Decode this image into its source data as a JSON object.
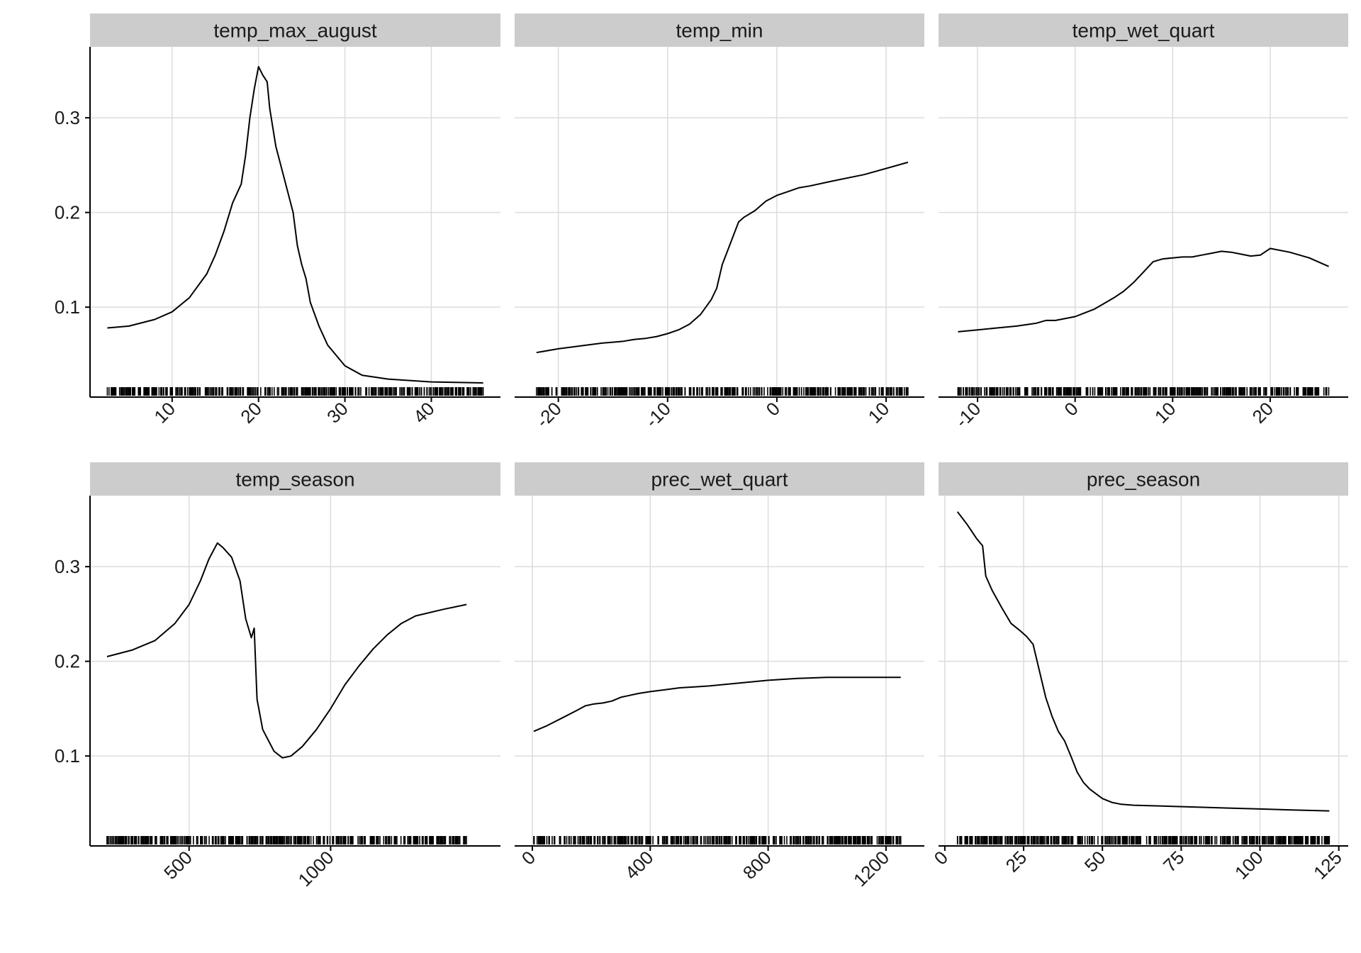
{
  "chart_data": [
    {
      "type": "line",
      "title": "temp_max_august",
      "xlim": [
        0.5,
        48
      ],
      "ylim": [
        0.005,
        0.375
      ],
      "x_ticks": [
        10,
        20,
        30,
        40
      ],
      "x_tick_labels": [
        "10",
        "20",
        "30",
        "40"
      ],
      "y_ticks": [
        0.1,
        0.2,
        0.3
      ],
      "y_tick_labels": [
        "0.1",
        "0.2",
        "0.3"
      ],
      "x": [
        2.5,
        5,
        8,
        10,
        12,
        14,
        15,
        16,
        17,
        18,
        18.5,
        19,
        19.5,
        20,
        20.5,
        21,
        21.3,
        22,
        23,
        24,
        24.5,
        25,
        25.5,
        26,
        27,
        28,
        30,
        32,
        35,
        40,
        46
      ],
      "y": [
        0.078,
        0.08,
        0.087,
        0.095,
        0.11,
        0.135,
        0.155,
        0.18,
        0.21,
        0.23,
        0.26,
        0.3,
        0.33,
        0.354,
        0.345,
        0.338,
        0.31,
        0.27,
        0.235,
        0.2,
        0.165,
        0.145,
        0.13,
        0.105,
        0.08,
        0.06,
        0.038,
        0.028,
        0.024,
        0.021,
        0.02
      ],
      "rug": {
        "min": 2.5,
        "max": 46
      }
    },
    {
      "type": "line",
      "title": "temp_min",
      "xlim": [
        -24,
        13.5
      ],
      "ylim": [
        0.005,
        0.375
      ],
      "x_ticks": [
        -20,
        -10,
        0,
        10
      ],
      "x_tick_labels": [
        "-20",
        "-10",
        "0",
        "10"
      ],
      "y_ticks": [
        0.1,
        0.2,
        0.3
      ],
      "y_tick_labels": [
        "0.1",
        "0.2",
        "0.3"
      ],
      "x": [
        -22,
        -20,
        -18,
        -16,
        -15,
        -14,
        -13,
        -12,
        -11,
        -10,
        -9,
        -8,
        -7,
        -6.5,
        -6,
        -5.5,
        -5,
        -4.5,
        -4,
        -3.5,
        -3,
        -2,
        -1,
        0,
        1,
        2,
        3,
        5,
        8,
        12
      ],
      "y": [
        0.052,
        0.056,
        0.059,
        0.062,
        0.063,
        0.064,
        0.066,
        0.067,
        0.069,
        0.072,
        0.076,
        0.082,
        0.092,
        0.1,
        0.108,
        0.12,
        0.145,
        0.16,
        0.175,
        0.19,
        0.195,
        0.202,
        0.212,
        0.218,
        0.222,
        0.226,
        0.228,
        0.233,
        0.24,
        0.253
      ],
      "rug": {
        "min": -22,
        "max": 12
      }
    },
    {
      "type": "line",
      "title": "temp_wet_quart",
      "xlim": [
        -14,
        28
      ],
      "ylim": [
        0.005,
        0.375
      ],
      "x_ticks": [
        -10,
        0,
        10,
        20
      ],
      "x_tick_labels": [
        "-10",
        "0",
        "10",
        "20"
      ],
      "y_ticks": [
        0.1,
        0.2,
        0.3
      ],
      "y_tick_labels": [
        "0.1",
        "0.2",
        "0.3"
      ],
      "x": [
        -12,
        -10,
        -8,
        -6,
        -4,
        -3,
        -2,
        0,
        1,
        2,
        3,
        4,
        5,
        6,
        7,
        8,
        9,
        10,
        11,
        12,
        13,
        14,
        15,
        16,
        17,
        18,
        19,
        20,
        22,
        24,
        26
      ],
      "y": [
        0.074,
        0.076,
        0.078,
        0.08,
        0.083,
        0.086,
        0.086,
        0.09,
        0.094,
        0.098,
        0.104,
        0.11,
        0.117,
        0.126,
        0.137,
        0.148,
        0.151,
        0.152,
        0.153,
        0.153,
        0.155,
        0.157,
        0.159,
        0.158,
        0.156,
        0.154,
        0.155,
        0.162,
        0.158,
        0.152,
        0.143
      ],
      "rug": {
        "min": -12,
        "max": 26
      }
    },
    {
      "type": "line",
      "title": "temp_season",
      "xlim": [
        150,
        1600
      ],
      "ylim": [
        0.005,
        0.375
      ],
      "x_ticks": [
        500,
        1000
      ],
      "x_tick_labels": [
        "500",
        "1000"
      ],
      "y_ticks": [
        0.1,
        0.2,
        0.3
      ],
      "y_tick_labels": [
        "0.1",
        "0.2",
        "0.3"
      ],
      "x": [
        210,
        300,
        380,
        450,
        500,
        540,
        570,
        600,
        620,
        650,
        680,
        700,
        720,
        730,
        740,
        760,
        800,
        830,
        860,
        900,
        950,
        1000,
        1050,
        1100,
        1150,
        1200,
        1250,
        1300,
        1400,
        1480
      ],
      "y": [
        0.205,
        0.212,
        0.222,
        0.24,
        0.26,
        0.285,
        0.308,
        0.325,
        0.32,
        0.31,
        0.285,
        0.245,
        0.225,
        0.235,
        0.16,
        0.128,
        0.105,
        0.098,
        0.1,
        0.11,
        0.128,
        0.15,
        0.175,
        0.195,
        0.213,
        0.228,
        0.24,
        0.248,
        0.255,
        0.26
      ],
      "rug": {
        "min": 210,
        "max": 1480
      }
    },
    {
      "type": "line",
      "title": "prec_wet_quart",
      "xlim": [
        -60,
        1330
      ],
      "ylim": [
        0.005,
        0.375
      ],
      "x_ticks": [
        0,
        400,
        800,
        1200
      ],
      "x_tick_labels": [
        "0",
        "400",
        "800",
        "1200"
      ],
      "y_ticks": [
        0.1,
        0.2,
        0.3
      ],
      "y_tick_labels": [
        "0.1",
        "0.2",
        "0.3"
      ],
      "x": [
        5,
        50,
        100,
        150,
        180,
        210,
        240,
        270,
        300,
        330,
        360,
        400,
        450,
        500,
        550,
        600,
        700,
        800,
        900,
        1000,
        1100,
        1250
      ],
      "y": [
        0.126,
        0.132,
        0.14,
        0.148,
        0.153,
        0.155,
        0.156,
        0.158,
        0.162,
        0.164,
        0.166,
        0.168,
        0.17,
        0.172,
        0.173,
        0.174,
        0.177,
        0.18,
        0.182,
        0.183,
        0.183,
        0.183
      ],
      "rug": {
        "min": 5,
        "max": 1250
      }
    },
    {
      "type": "line",
      "title": "prec_season",
      "xlim": [
        -2,
        128
      ],
      "ylim": [
        0.005,
        0.375
      ],
      "x_ticks": [
        0,
        25,
        50,
        75,
        100,
        125
      ],
      "x_tick_labels": [
        "0",
        "25",
        "50",
        "75",
        "100",
        "125"
      ],
      "y_ticks": [
        0.1,
        0.2,
        0.3
      ],
      "y_tick_labels": [
        "0.1",
        "0.2",
        "0.3"
      ],
      "x": [
        4,
        7,
        10,
        12,
        13,
        15,
        18,
        21,
        24,
        26,
        28,
        30,
        32,
        34,
        36,
        38,
        40,
        42,
        44,
        46,
        48,
        50,
        53,
        56,
        60,
        70,
        80,
        90,
        100,
        110,
        122
      ],
      "y": [
        0.358,
        0.345,
        0.33,
        0.322,
        0.29,
        0.275,
        0.257,
        0.24,
        0.232,
        0.226,
        0.218,
        0.19,
        0.162,
        0.142,
        0.126,
        0.116,
        0.1,
        0.083,
        0.072,
        0.065,
        0.06,
        0.055,
        0.051,
        0.049,
        0.048,
        0.047,
        0.046,
        0.045,
        0.044,
        0.043,
        0.042
      ],
      "rug": {
        "min": 4,
        "max": 122
      }
    }
  ]
}
